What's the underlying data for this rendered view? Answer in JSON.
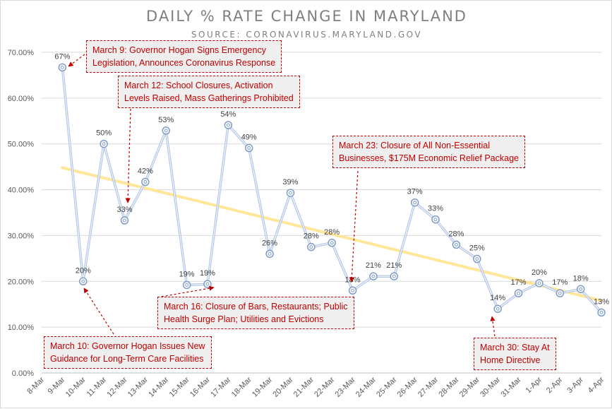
{
  "chart_data": {
    "type": "line",
    "title": "DAILY % RATE CHANGE IN MARYLAND",
    "subtitle": "SOURCE: CORONAVIRUS.MARYLAND.GOV",
    "xlabel": "",
    "ylabel": "",
    "categories": [
      "8-Mar",
      "9-Mar",
      "10-Mar",
      "11-Mar",
      "12-Mar",
      "13-Mar",
      "14-Mar",
      "15-Mar",
      "16-Mar",
      "17-Mar",
      "18-Mar",
      "19-Mar",
      "20-Mar",
      "21-Mar",
      "22-Mar",
      "23-Mar",
      "24-Mar",
      "25-Mar",
      "26-Mar",
      "27-Mar",
      "28-Mar",
      "29-Mar",
      "30-Mar",
      "31-Mar",
      "1-Apr",
      "2-Apr",
      "3-Apr",
      "4-Apr"
    ],
    "ylim": [
      0,
      70
    ],
    "yticks": [
      "0.00%",
      "10.00%",
      "20.00%",
      "30.00%",
      "40.00%",
      "50.00%",
      "60.00%",
      "70.00%"
    ],
    "series": [
      {
        "values": [
          null,
          66.7,
          20.0,
          50.0,
          33.3,
          41.7,
          52.9,
          19.2,
          19.4,
          54.1,
          49.1,
          26.0,
          39.3,
          27.5,
          28.4,
          18.0,
          21.1,
          21.1,
          37.2,
          33.5,
          28.0,
          24.9,
          14.0,
          17.4,
          19.6,
          17.4,
          18.3,
          13.2
        ],
        "labels": [
          "",
          "67%",
          "20%",
          "50%",
          "33%",
          "42%",
          "53%",
          "19%",
          "19%",
          "54%",
          "49%",
          "26%",
          "39%",
          "28%",
          "28%",
          "18%",
          "21%",
          "21%",
          "37%",
          "33%",
          "28%",
          "25%",
          "14%",
          "17%",
          "20%",
          "17%",
          "18%",
          "13%"
        ]
      }
    ],
    "trendline": {
      "start": 44.8,
      "end": 15.8
    },
    "grid": true,
    "colors": {
      "line": "#b4c7e7",
      "marker": "#7f9cc8",
      "trend": "#ffe699",
      "callout": "#c00000",
      "axis": "#595959",
      "grid": "#d9d9d9"
    },
    "annotations": [
      {
        "lines": [
          "March 9: Governor Hogan Signs Emergency",
          "Legislation, Announces Coronavirus Response"
        ]
      },
      {
        "lines": [
          "March 12: School Closures, Activation",
          "Levels Raised, Mass Gatherings Prohibited"
        ]
      },
      {
        "lines": [
          "March 23: Closure of All Non-Essential",
          "Businesses, $175M Economic Relief Package"
        ]
      },
      {
        "lines": [
          "March 16: Closure of Bars, Restaurants; Public",
          "Health Surge Plan; Utilities and Evictions"
        ]
      },
      {
        "lines": [
          "March 10: Governor Hogan Issues New",
          "Guidance for Long-Term Care Facilities"
        ]
      },
      {
        "lines": [
          "March 30: Stay At",
          "Home Directive"
        ]
      }
    ]
  }
}
